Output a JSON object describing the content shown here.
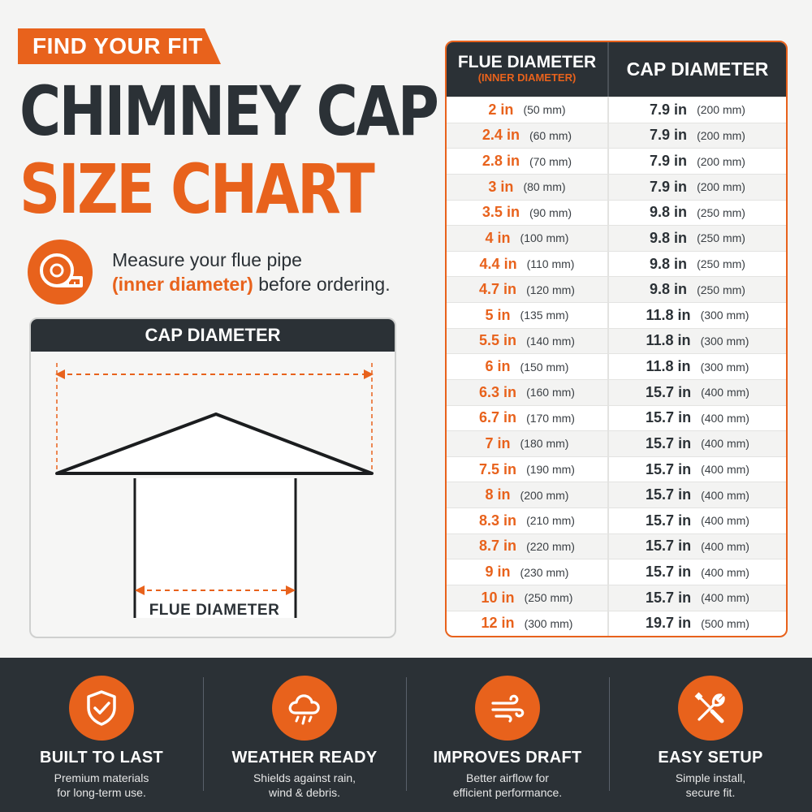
{
  "header": {
    "banner": "FIND YOUR FIT",
    "title_line1": "CHIMNEY CAP",
    "title_line2": "SIZE CHART",
    "measure_line1": "Measure your flue pipe",
    "measure_highlight": "(inner diameter)",
    "measure_line2_rest": " before ordering.",
    "icon": "measuring-tape-icon"
  },
  "diagram": {
    "title": "CAP DIAMETER",
    "flue_label": "FLUE DIAMETER"
  },
  "table": {
    "col1_title": "FLUE DIAMETER",
    "col1_subtitle": "(INNER DIAMETER)",
    "col2_title": "CAP DIAMETER",
    "rows": [
      {
        "flue": "2 in",
        "flue_mm": "(50 mm)",
        "cap": "7.9 in",
        "cap_mm": "(200 mm)"
      },
      {
        "flue": "2.4 in",
        "flue_mm": "(60 mm)",
        "cap": "7.9 in",
        "cap_mm": "(200 mm)"
      },
      {
        "flue": "2.8 in",
        "flue_mm": "(70 mm)",
        "cap": "7.9 in",
        "cap_mm": "(200 mm)"
      },
      {
        "flue": "3 in",
        "flue_mm": "(80 mm)",
        "cap": "7.9 in",
        "cap_mm": "(200 mm)"
      },
      {
        "flue": "3.5 in",
        "flue_mm": "(90 mm)",
        "cap": "9.8 in",
        "cap_mm": "(250 mm)"
      },
      {
        "flue": "4 in",
        "flue_mm": "(100 mm)",
        "cap": "9.8 in",
        "cap_mm": "(250 mm)"
      },
      {
        "flue": "4.4 in",
        "flue_mm": "(110 mm)",
        "cap": "9.8 in",
        "cap_mm": "(250 mm)"
      },
      {
        "flue": "4.7 in",
        "flue_mm": "(120 mm)",
        "cap": "9.8 in",
        "cap_mm": "(250 mm)"
      },
      {
        "flue": "5 in",
        "flue_mm": "(135 mm)",
        "cap": "11.8 in",
        "cap_mm": "(300 mm)"
      },
      {
        "flue": "5.5 in",
        "flue_mm": "(140 mm)",
        "cap": "11.8 in",
        "cap_mm": "(300 mm)"
      },
      {
        "flue": "6 in",
        "flue_mm": "(150 mm)",
        "cap": "11.8 in",
        "cap_mm": "(300 mm)"
      },
      {
        "flue": "6.3 in",
        "flue_mm": "(160 mm)",
        "cap": "15.7 in",
        "cap_mm": "(400 mm)"
      },
      {
        "flue": "6.7 in",
        "flue_mm": "(170 mm)",
        "cap": "15.7 in",
        "cap_mm": "(400 mm)"
      },
      {
        "flue": "7 in",
        "flue_mm": "(180 mm)",
        "cap": "15.7 in",
        "cap_mm": "(400 mm)"
      },
      {
        "flue": "7.5 in",
        "flue_mm": "(190 mm)",
        "cap": "15.7 in",
        "cap_mm": "(400 mm)"
      },
      {
        "flue": "8 in",
        "flue_mm": "(200 mm)",
        "cap": "15.7 in",
        "cap_mm": "(400 mm)"
      },
      {
        "flue": "8.3 in",
        "flue_mm": "(210 mm)",
        "cap": "15.7 in",
        "cap_mm": "(400 mm)"
      },
      {
        "flue": "8.7 in",
        "flue_mm": "(220 mm)",
        "cap": "15.7 in",
        "cap_mm": "(400 mm)"
      },
      {
        "flue": "9 in",
        "flue_mm": "(230 mm)",
        "cap": "15.7 in",
        "cap_mm": "(400 mm)"
      },
      {
        "flue": "10 in",
        "flue_mm": "(250 mm)",
        "cap": "15.7 in",
        "cap_mm": "(400 mm)"
      },
      {
        "flue": "12 in",
        "flue_mm": "(300 mm)",
        "cap": "19.7 in",
        "cap_mm": "(500 mm)"
      }
    ]
  },
  "features": [
    {
      "title": "BUILT TO LAST",
      "line1": "Premium materials",
      "line2": "for long-term use.",
      "icon": "shield-check-icon"
    },
    {
      "title": "WEATHER READY",
      "line1": "Shields against rain,",
      "line2": "wind & debris.",
      "icon": "rain-cloud-icon"
    },
    {
      "title": "IMPROVES DRAFT",
      "line1": "Better airflow for",
      "line2": "efficient performance.",
      "icon": "wind-icon"
    },
    {
      "title": "EASY SETUP",
      "line1": "Simple install,",
      "line2": "secure fit.",
      "icon": "tools-icon"
    }
  ],
  "colors": {
    "accent": "#e8621c",
    "dark": "#2b3136",
    "background": "#f4f4f3"
  }
}
